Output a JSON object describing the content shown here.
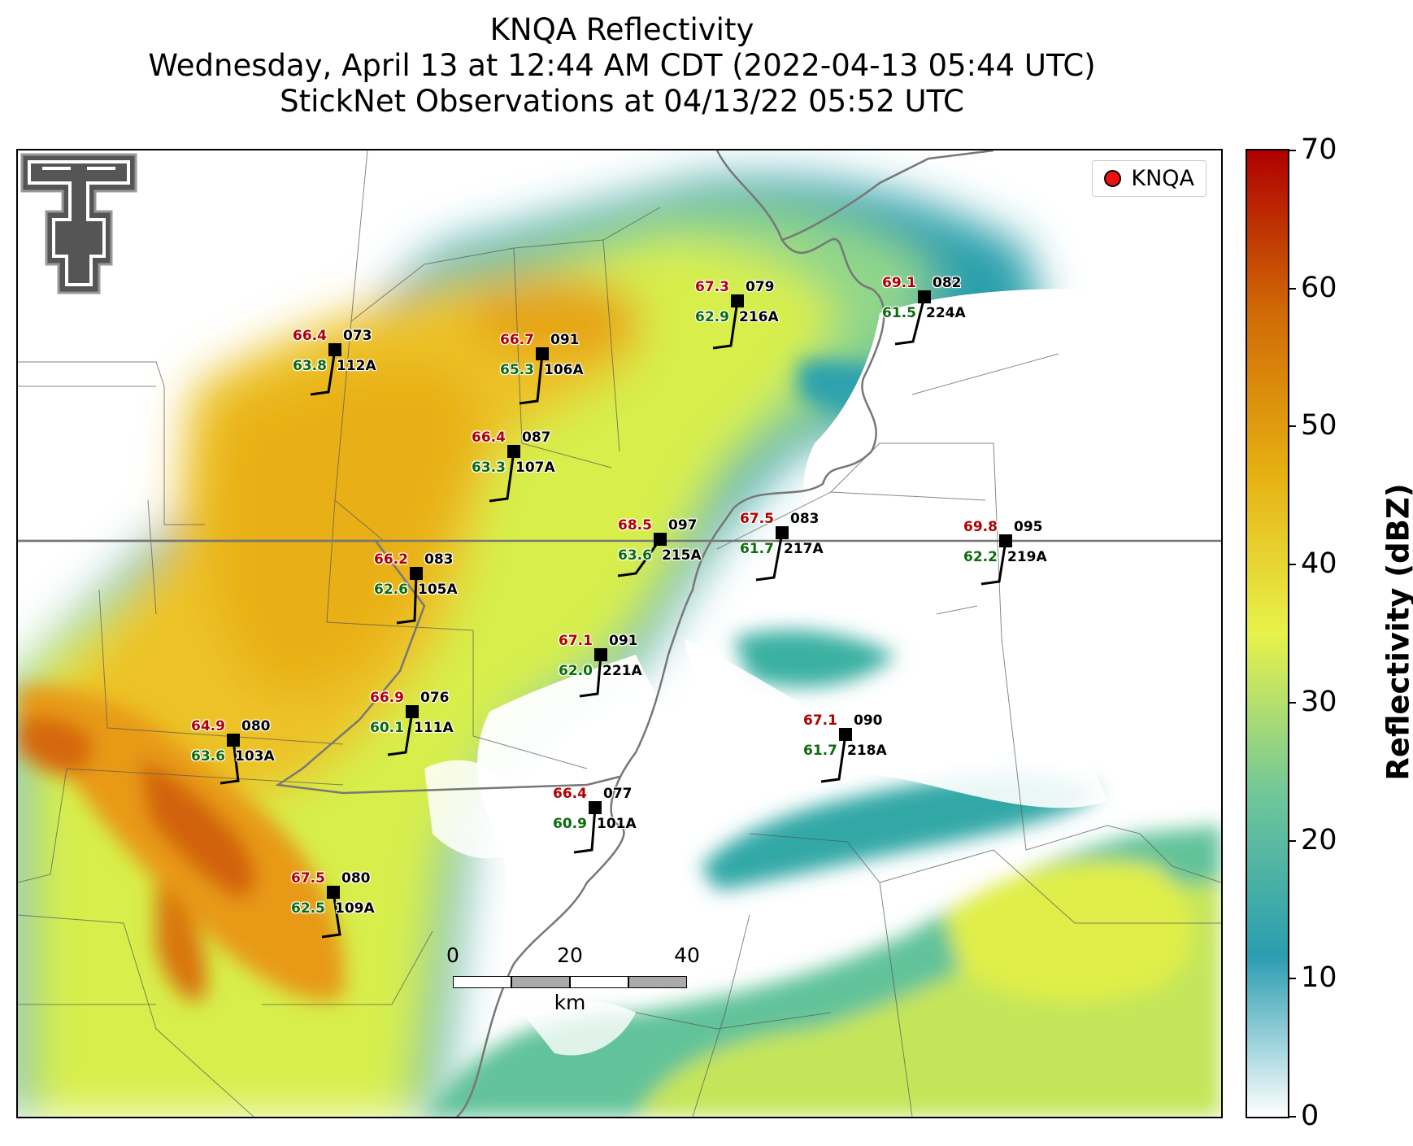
{
  "titles": {
    "line1": "KNQA Reflectivity",
    "line2": "Wednesday, April 13 at 12:44 AM CDT (2022-04-13 05:44 UTC)",
    "line3": "StickNet Observations at 04/13/22 05:52 UTC"
  },
  "legend": {
    "label": "KNQA",
    "marker_color": "#ee1111"
  },
  "colorbar": {
    "label": "Reflectivity (dBZ)",
    "ticks": [
      "0",
      "10",
      "20",
      "30",
      "40",
      "50",
      "60",
      "70"
    ],
    "stops": [
      "#ffffff",
      "#2a9db0",
      "#6fc79a",
      "#e8f24a",
      "#e6b012",
      "#d06a06",
      "#b00000"
    ]
  },
  "scalebar": {
    "labels": [
      "0",
      "20",
      "40"
    ],
    "unit": "km"
  },
  "colors": {
    "temperature": "#b00000",
    "dewpoint": "#0d6b0d",
    "id": "#000000"
  },
  "stations": [
    {
      "id": "112A",
      "temp": "66.4",
      "dew": "63.8",
      "dir": "073"
    },
    {
      "id": "106A",
      "temp": "66.7",
      "dew": "65.3",
      "dir": "091"
    },
    {
      "id": "216A",
      "temp": "67.3",
      "dew": "62.9",
      "dir": "079"
    },
    {
      "id": "224A",
      "temp": "69.1",
      "dew": "61.5",
      "dir": "082"
    },
    {
      "id": "107A",
      "temp": "66.4",
      "dew": "63.3",
      "dir": "087"
    },
    {
      "id": "215A",
      "temp": "68.5",
      "dew": "63.6",
      "dir": "097"
    },
    {
      "id": "217A",
      "temp": "67.5",
      "dew": "61.7",
      "dir": "083"
    },
    {
      "id": "219A",
      "temp": "69.8",
      "dew": "62.2",
      "dir": "095"
    },
    {
      "id": "105A",
      "temp": "66.2",
      "dew": "62.6",
      "dir": "083"
    },
    {
      "id": "221A",
      "temp": "67.1",
      "dew": "62.0",
      "dir": "091"
    },
    {
      "id": "111A",
      "temp": "66.9",
      "dew": "60.1",
      "dir": "076"
    },
    {
      "id": "103A",
      "temp": "64.9",
      "dew": "63.6",
      "dir": "080"
    },
    {
      "id": "218A",
      "temp": "67.1",
      "dew": "61.7",
      "dir": "090"
    },
    {
      "id": "101A",
      "temp": "66.4",
      "dew": "60.9",
      "dir": "077"
    },
    {
      "id": "109A",
      "temp": "67.5",
      "dew": "62.5",
      "dir": "080"
    }
  ]
}
